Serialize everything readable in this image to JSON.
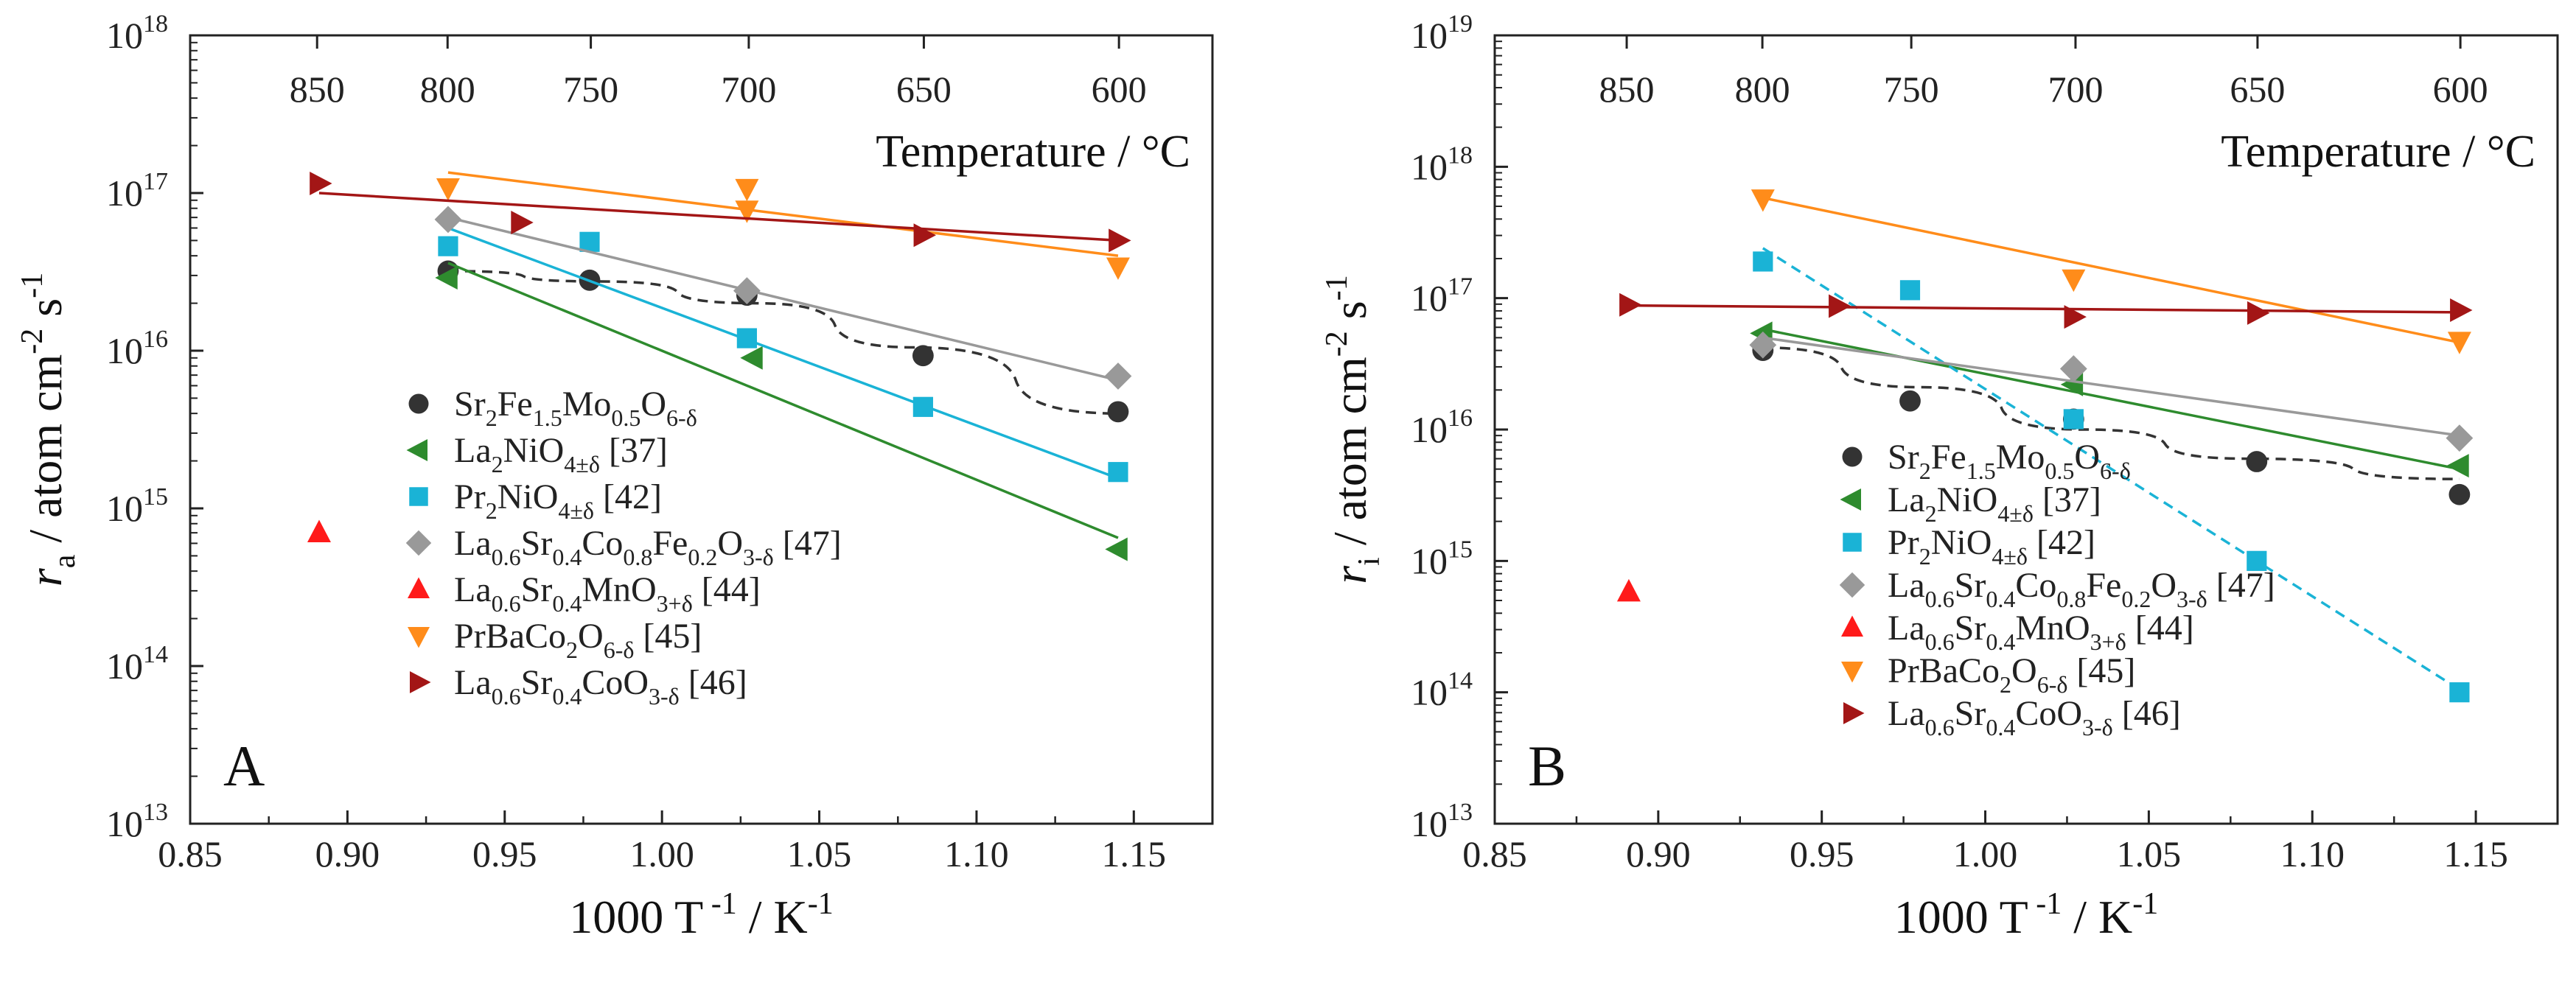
{
  "chart_data": [
    {
      "type": "scatter",
      "panel_label": "A",
      "xlabel_main": "1000 T",
      "xlabel_sup": " -1",
      "xlabel_rest": " / K",
      "xlabel_unit_sup": "-1",
      "ylabel_var": "r",
      "ylabel_sub": "a",
      "ylabel_rest": " / atom cm",
      "ylabel_sup1": "-2",
      "ylabel_rest2": " s",
      "ylabel_sup2": "-1",
      "xlim": [
        0.85,
        1.175
      ],
      "xticks": [
        "0.85",
        "0.90",
        "0.95",
        "1.00",
        "1.05",
        "1.10",
        "1.15"
      ],
      "ylim_exp": [
        13,
        18
      ],
      "y_log_scale": true,
      "yticks_exp": [
        13,
        14,
        15,
        16,
        17,
        18
      ],
      "ytick_base": "10",
      "top_axis_label": "Temperature / °C",
      "top_ticks": [
        "850",
        "800",
        "750",
        "700",
        "650",
        "600"
      ],
      "legend": [
        {
          "base": "Sr",
          "subs": [
            "2",
            "Fe",
            "1.5",
            "Mo",
            "0.5",
            "O",
            "6-δ"
          ],
          "ref": ""
        },
        {
          "base": "La",
          "subs": [
            "2",
            "NiO",
            "4±δ"
          ],
          "ref": " [37]"
        },
        {
          "base": "Pr",
          "subs": [
            "2",
            "NiO",
            "4±δ"
          ],
          "ref": " [42]"
        },
        {
          "base": "La",
          "subs": [
            "0.6",
            "Sr",
            "0.4",
            "Co",
            "0.8",
            "Fe",
            "0.2",
            "O",
            "3-δ"
          ],
          "ref": " [47]"
        },
        {
          "base": "La",
          "subs": [
            "0.6",
            "Sr",
            "0.4",
            "MnO",
            "3+δ"
          ],
          "ref": " [44]"
        },
        {
          "base": "PrBaCo",
          "subs": [
            "2",
            "O",
            "6-δ"
          ],
          "ref": " [45]"
        },
        {
          "base": "La",
          "subs": [
            "0.6",
            "Sr",
            "0.4",
            "CoO",
            "3-δ"
          ],
          "ref": " [46]"
        }
      ],
      "series": [
        {
          "color": "#333333",
          "marker": "circle",
          "fit": "dashed",
          "points": [
            [
              0.932,
              3.2e+16
            ],
            [
              0.977,
              2.8e+16
            ],
            [
              1.027,
              2.25e+16
            ],
            [
              1.083,
              9300000000000000.0
            ],
            [
              1.145,
              4100000000000000.0
            ]
          ],
          "fit_points": [
            [
              0.932,
              3.2e+16
            ],
            [
              0.98,
              2.75e+16
            ],
            [
              1.03,
              2e+16
            ],
            [
              1.08,
              1.05e+16
            ],
            [
              1.145,
              4000000000000000.0
            ]
          ]
        },
        {
          "color": "#2e8b2e",
          "marker": "tri-left",
          "fit": "solid",
          "points": [
            [
              0.932,
              2.9e+16
            ],
            [
              1.029,
              9000000000000000.0
            ],
            [
              1.145,
              550000000000000.0
            ]
          ],
          "fit_points": [
            [
              0.932,
              3.6e+16
            ],
            [
              1.145,
              650000000000000.0
            ]
          ]
        },
        {
          "color": "#1ab3d6",
          "marker": "square",
          "fit": "solid",
          "points": [
            [
              0.932,
              4.6e+16
            ],
            [
              0.977,
              4.9e+16
            ],
            [
              1.027,
              1.2e+16
            ],
            [
              1.083,
              4400000000000000.0
            ],
            [
              1.145,
              1700000000000000.0
            ]
          ],
          "fit_points": [
            [
              0.932,
              6e+16
            ],
            [
              1.145,
              1550000000000000.0
            ]
          ]
        },
        {
          "color": "#999999",
          "marker": "diamond",
          "fit": "solid",
          "points": [
            [
              0.932,
              6.8e+16
            ],
            [
              1.027,
              2.4e+16
            ],
            [
              1.145,
              6900000000000000.0
            ]
          ],
          "fit_points": [
            [
              0.932,
              7e+16
            ],
            [
              1.145,
              6500000000000000.0
            ]
          ]
        },
        {
          "color": "#ff1a1a",
          "marker": "tri-up",
          "fit": "none",
          "points": [
            [
              0.891,
              700000000000000.0
            ]
          ]
        },
        {
          "color": "#ff8c1a",
          "marker": "tri-down",
          "fit": "solid",
          "points": [
            [
              0.932,
              1.08e+17
            ],
            [
              1.027,
              1.07e+17
            ],
            [
              1.027,
              7.8e+16
            ],
            [
              1.145,
              3.4e+16
            ]
          ],
          "fit_points": [
            [
              0.932,
              1.35e+17
            ],
            [
              1.145,
              4e+16
            ]
          ]
        },
        {
          "color": "#a31616",
          "marker": "tri-right",
          "fit": "solid",
          "points": [
            [
              0.891,
              1.15e+17
            ],
            [
              0.955,
              6.5e+16
            ],
            [
              1.083,
              5.4e+16
            ],
            [
              1.145,
              5e+16
            ]
          ],
          "fit_points": [
            [
              0.891,
              1e+17
            ],
            [
              1.145,
              5e+16
            ]
          ]
        }
      ]
    },
    {
      "type": "scatter",
      "panel_label": "B",
      "xlabel_main": "1000 T",
      "xlabel_sup": " -1",
      "xlabel_rest": " / K",
      "xlabel_unit_sup": "-1",
      "ylabel_var": "r",
      "ylabel_sub": "i",
      "ylabel_rest": " / atom cm",
      "ylabel_sup1": "-2",
      "ylabel_rest2": " s",
      "ylabel_sup2": "-1",
      "xlim": [
        0.85,
        1.175
      ],
      "xticks": [
        "0.85",
        "0.90",
        "0.95",
        "1.00",
        "1.05",
        "1.10",
        "1.15"
      ],
      "ylim_exp": [
        13,
        19
      ],
      "y_log_scale": true,
      "yticks_exp": [
        13,
        14,
        15,
        16,
        17,
        18,
        19
      ],
      "ytick_base": "10",
      "top_axis_label": "Temperature / °C",
      "top_ticks": [
        "850",
        "800",
        "750",
        "700",
        "650",
        "600"
      ],
      "legend": [
        {
          "base": "Sr",
          "subs": [
            "2",
            "Fe",
            "1.5",
            "Mo",
            "0.5",
            "O",
            "6-δ"
          ],
          "ref": ""
        },
        {
          "base": "La",
          "subs": [
            "2",
            "NiO",
            "4±δ"
          ],
          "ref": " [37]"
        },
        {
          "base": "Pr",
          "subs": [
            "2",
            "NiO",
            "4±δ"
          ],
          "ref": " [42]"
        },
        {
          "base": "La",
          "subs": [
            "0.6",
            "Sr",
            "0.4",
            "Co",
            "0.8",
            "Fe",
            "0.2",
            "O",
            "3-δ"
          ],
          "ref": " [47]"
        },
        {
          "base": "La",
          "subs": [
            "0.6",
            "Sr",
            "0.4",
            "MnO",
            "3+δ"
          ],
          "ref": " [44]"
        },
        {
          "base": "PrBaCo",
          "subs": [
            "2",
            "O",
            "6-δ"
          ],
          "ref": " [45]"
        },
        {
          "base": "La",
          "subs": [
            "0.6",
            "Sr",
            "0.4",
            "CoO",
            "3-δ"
          ],
          "ref": " [46]"
        }
      ],
      "series": [
        {
          "color": "#333333",
          "marker": "circle",
          "fit": "dashed",
          "points": [
            [
              0.932,
              4e+16
            ],
            [
              0.977,
              1.65e+16
            ],
            [
              1.027,
              1.2e+16
            ],
            [
              1.083,
              5700000000000000.0
            ],
            [
              1.145,
              3200000000000000.0
            ]
          ],
          "fit_points": [
            [
              0.932,
              4.2e+16
            ],
            [
              0.98,
              2.1e+16
            ],
            [
              1.03,
              1e+16
            ],
            [
              1.08,
              6000000000000000.0
            ],
            [
              1.145,
              4200000000000000.0
            ]
          ]
        },
        {
          "color": "#2e8b2e",
          "marker": "tri-left",
          "fit": "solid",
          "points": [
            [
              0.932,
              5.4e+16
            ],
            [
              1.027,
              2.2e+16
            ],
            [
              1.145,
              5300000000000000.0
            ]
          ],
          "fit_points": [
            [
              0.932,
              5.8e+16
            ],
            [
              1.145,
              5000000000000000.0
            ]
          ]
        },
        {
          "color": "#1ab3d6",
          "marker": "square",
          "fit": "dashed",
          "points": [
            [
              0.932,
              1.9e+17
            ],
            [
              0.977,
              1.15e+17
            ],
            [
              1.027,
              1.2e+16
            ],
            [
              1.083,
              1000000000000000.0
            ],
            [
              1.145,
              100000000000000.0
            ]
          ],
          "fit_points": [
            [
              0.932,
              2.4e+17
            ],
            [
              1.145,
              105000000000000.0
            ]
          ]
        },
        {
          "color": "#999999",
          "marker": "diamond",
          "fit": "solid",
          "points": [
            [
              0.932,
              4.4e+16
            ],
            [
              1.027,
              2.9e+16
            ],
            [
              1.145,
              8600000000000000.0
            ]
          ],
          "fit_points": [
            [
              0.932,
              5e+16
            ],
            [
              1.145,
              9000000000000000.0
            ]
          ]
        },
        {
          "color": "#ff1a1a",
          "marker": "tri-up",
          "fit": "none",
          "points": [
            [
              0.891,
              580000000000000.0
            ]
          ]
        },
        {
          "color": "#ff8c1a",
          "marker": "tri-down",
          "fit": "solid",
          "points": [
            [
              0.932,
              5.7e+17
            ],
            [
              1.027,
              1.4e+17
            ],
            [
              1.145,
              4.7e+16
            ]
          ],
          "fit_points": [
            [
              0.932,
              5.8e+17
            ],
            [
              1.145,
              4.6e+16
            ]
          ]
        },
        {
          "color": "#a31616",
          "marker": "tri-right",
          "fit": "solid",
          "points": [
            [
              0.891,
              8.9e+16
            ],
            [
              0.955,
              8.7e+16
            ],
            [
              1.027,
              7.2e+16
            ],
            [
              1.083,
              7.7e+16
            ],
            [
              1.145,
              8.1e+16
            ]
          ],
          "fit_points": [
            [
              0.891,
              8.8e+16
            ],
            [
              1.145,
              7.8e+16
            ]
          ]
        }
      ]
    }
  ]
}
